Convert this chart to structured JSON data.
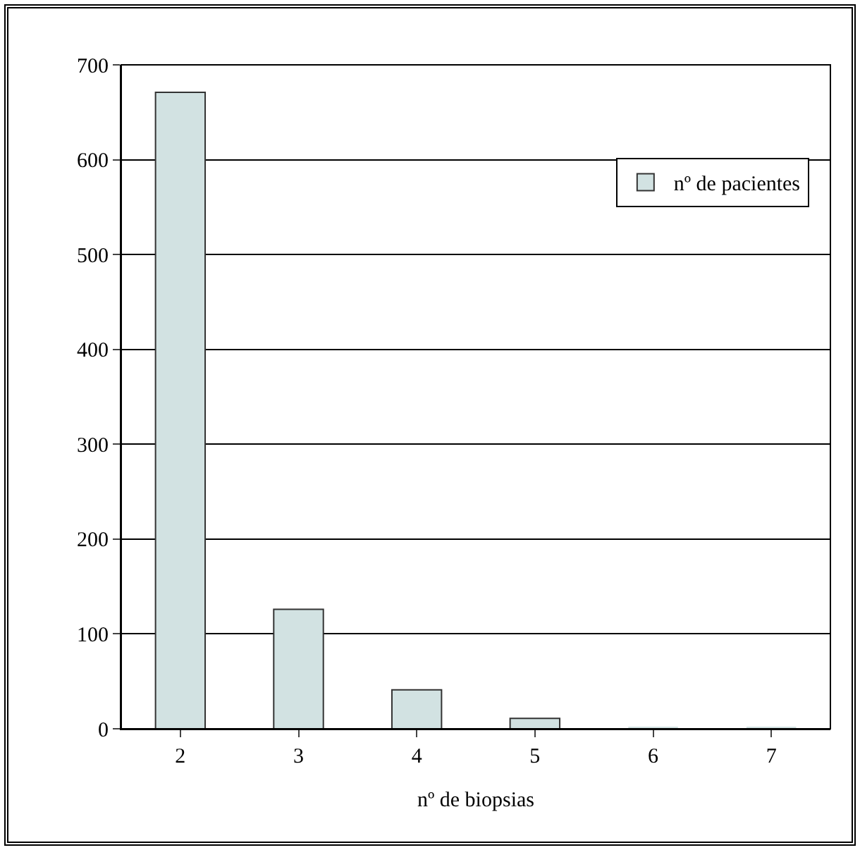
{
  "chart_data": {
    "type": "bar",
    "xlabel": "nº de biopsias",
    "categories": [
      "2",
      "3",
      "4",
      "5",
      "6",
      "7"
    ],
    "series": [
      {
        "name": "nº de pacientes",
        "color": "#d2e2e2",
        "values": [
          671,
          126,
          41,
          11,
          0,
          0
        ]
      }
    ],
    "ylim": [
      0,
      700
    ],
    "yticks": [
      0,
      100,
      200,
      300,
      400,
      500,
      600,
      700
    ],
    "grid": "y",
    "legend": "top right"
  }
}
